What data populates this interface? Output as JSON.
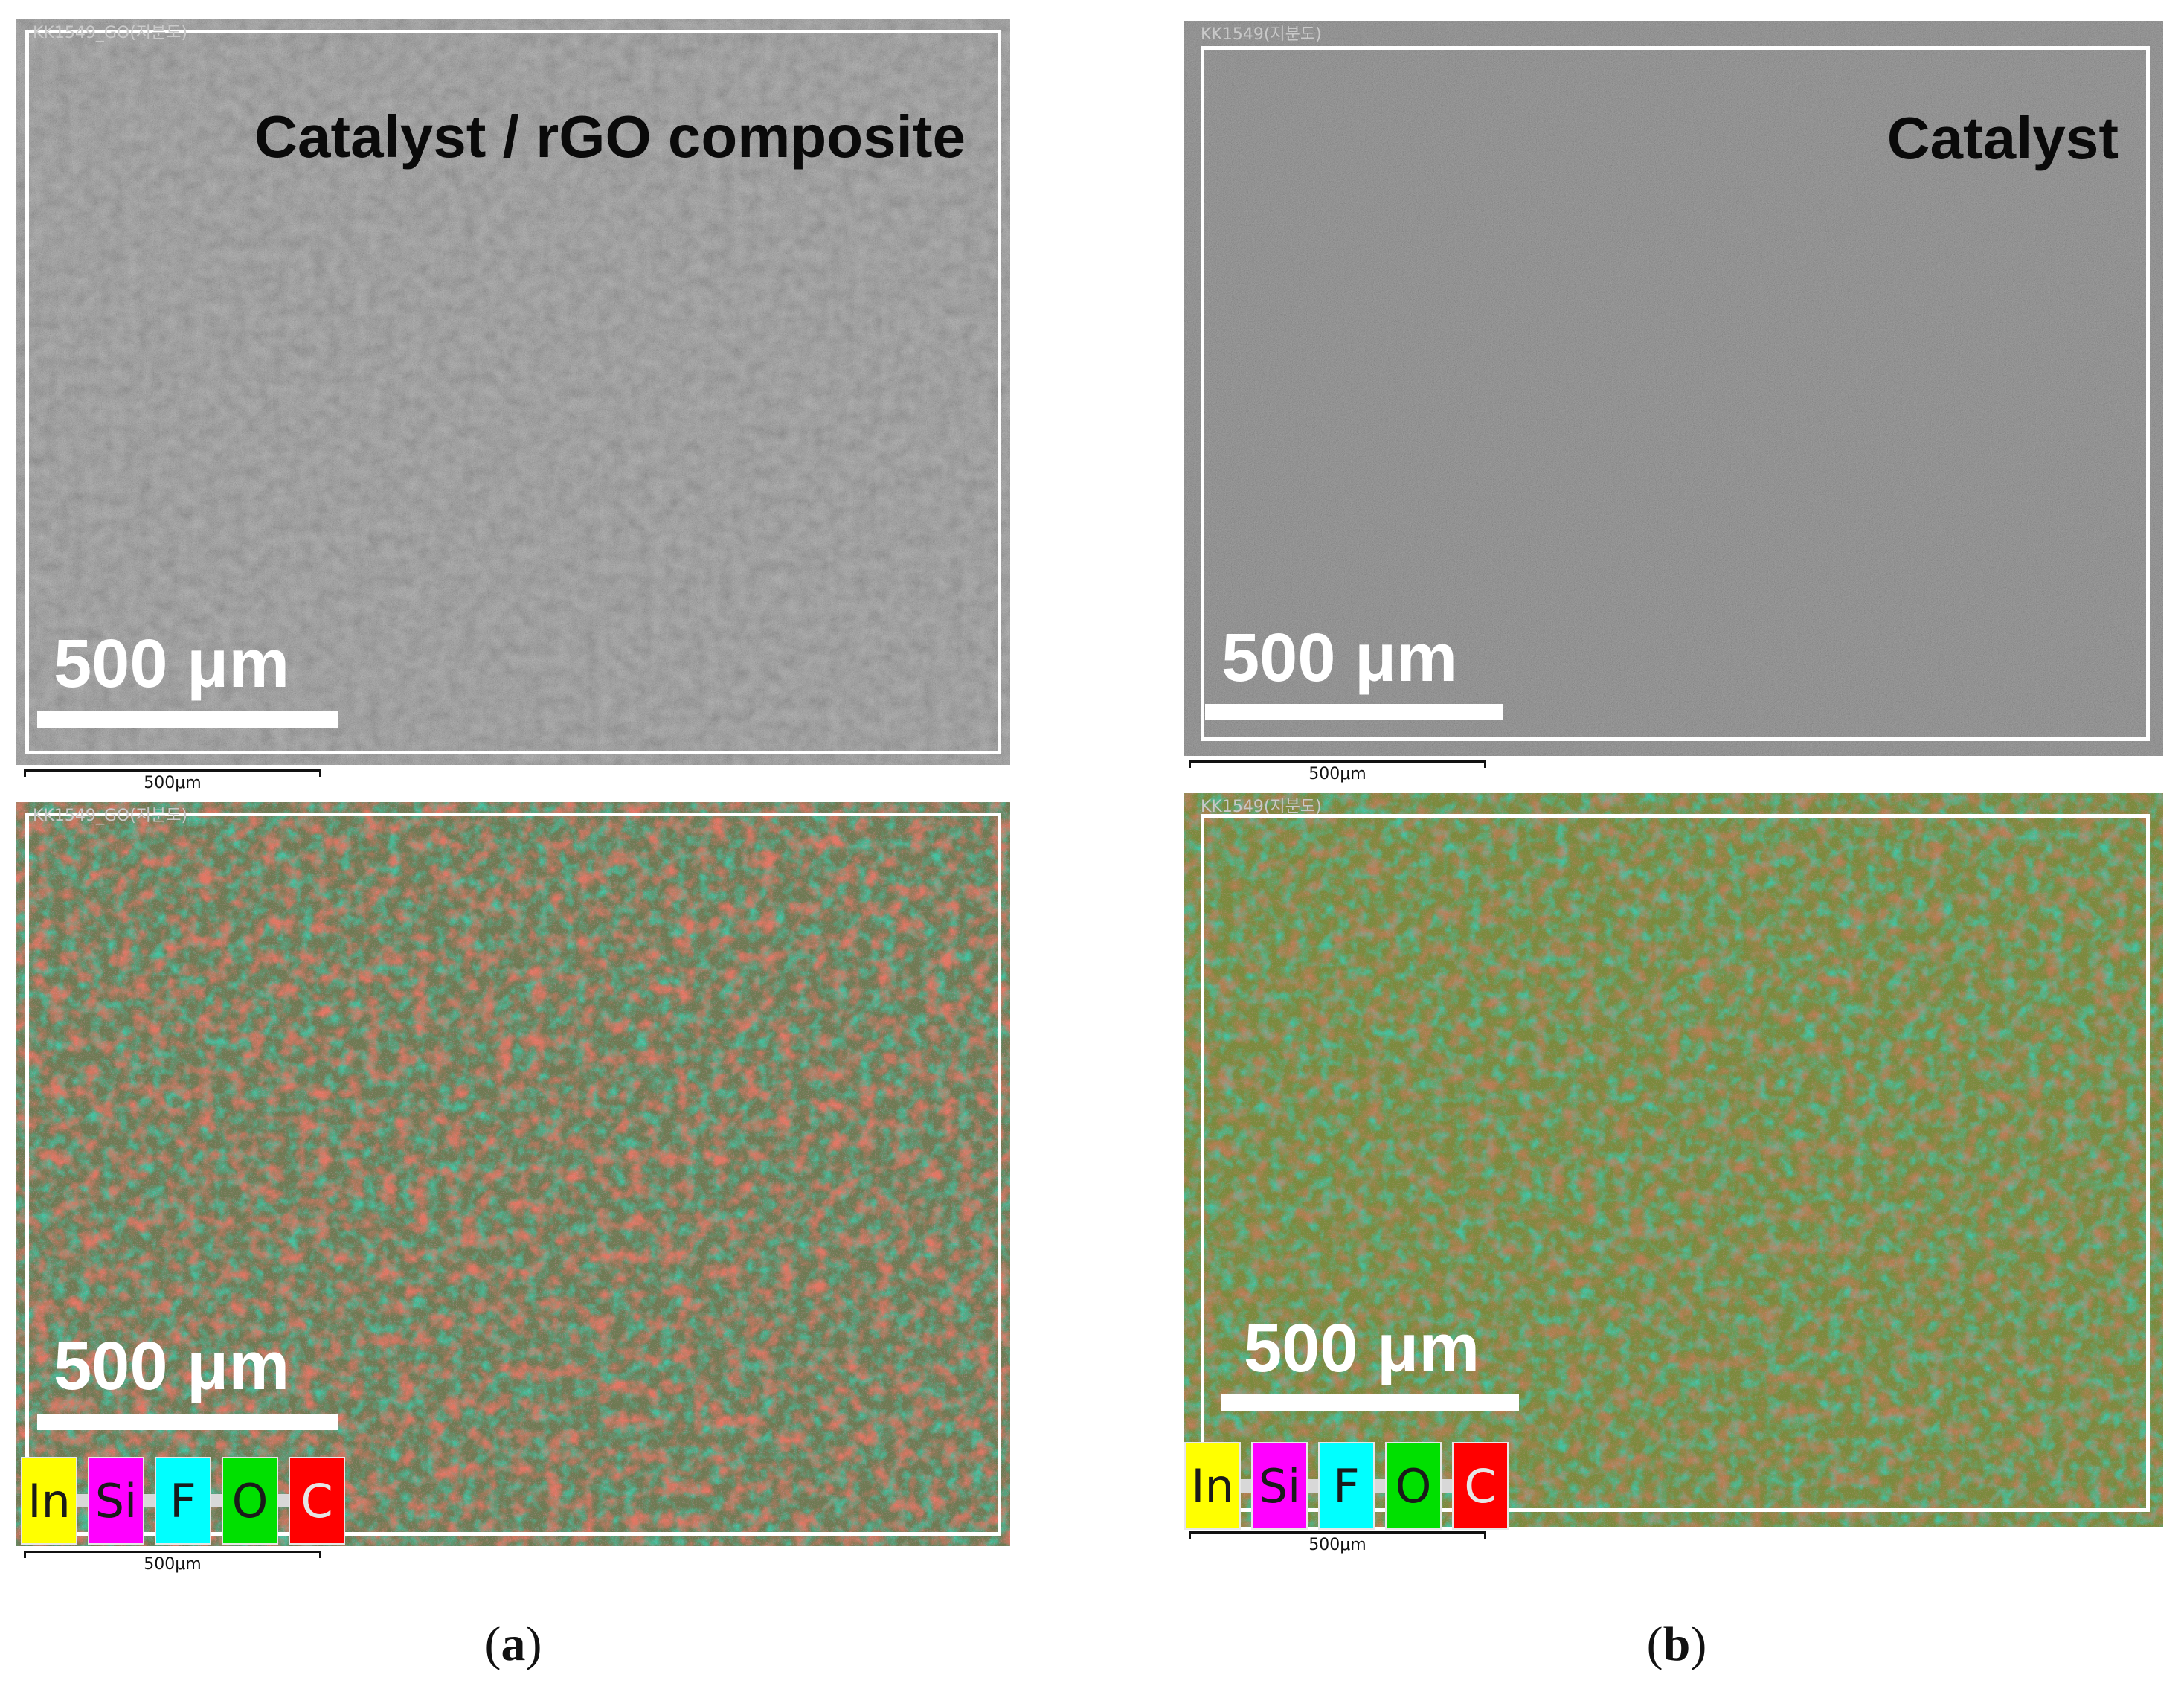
{
  "figure": {
    "panels": {
      "a_sem": {
        "header": "KK1549_GO(지분도)",
        "label": "Catalyst / rGO composite",
        "scale_text": "500 μm",
        "mini_scale": "500μm"
      },
      "a_map": {
        "header": "KK1549_GO(지분도)",
        "scale_text": "500 μm",
        "mini_scale": "500μm",
        "legend": [
          "In",
          "Si",
          "F",
          "O",
          "C"
        ]
      },
      "b_sem": {
        "header": "KK1549(지분도)",
        "label": "Catalyst",
        "scale_text": "500 μm",
        "mini_scale": "500μm"
      },
      "b_map": {
        "header": "KK1549(지분도)",
        "scale_text": "500 μm",
        "mini_scale": "500μm",
        "legend": [
          "In",
          "Si",
          "F",
          "O",
          "C"
        ]
      }
    },
    "captions": {
      "a_open": "(",
      "a": "a",
      "a_close": ")",
      "b_open": "(",
      "b": "b",
      "b_close": ")"
    },
    "legend_colors": {
      "In": "#ffff00",
      "Si": "#ff00ff",
      "F": "#00ffff",
      "O": "#00e000",
      "C": "#ff0000"
    }
  }
}
